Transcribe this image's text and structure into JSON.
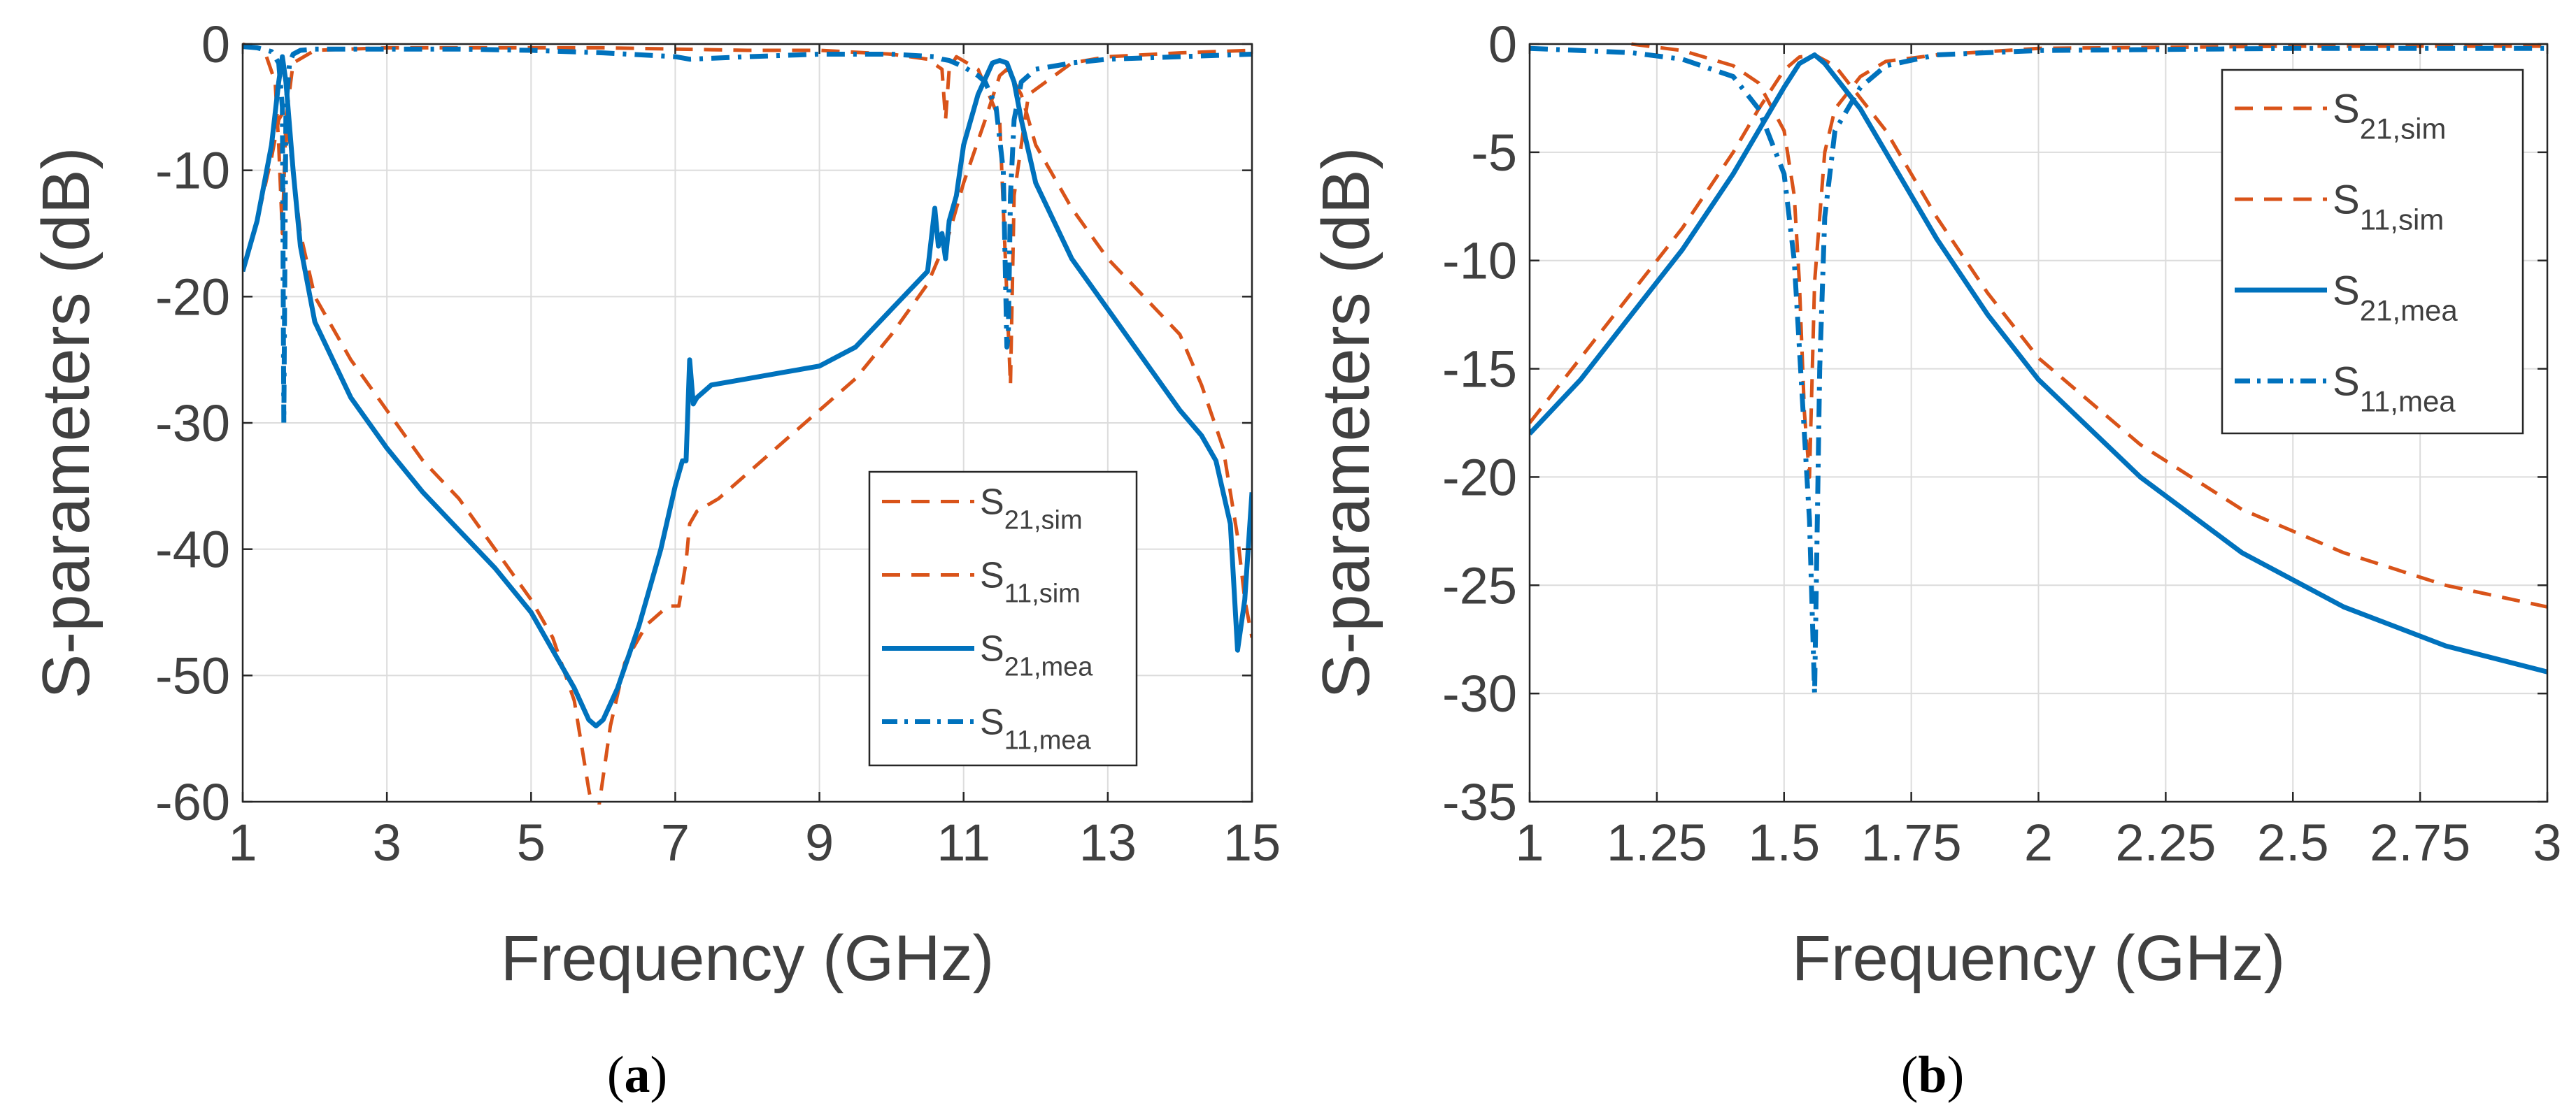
{
  "colors": {
    "sim": "#D95319",
    "mea": "#0072BD",
    "axis": "#262626",
    "grid": "#dcdcdc",
    "text": "#404040"
  },
  "chart_data": [
    {
      "id": "a",
      "type": "line",
      "caption": {
        "open": "(",
        "letter": "a",
        "close": ")"
      },
      "xlabel": "Frequency (GHz)",
      "ylabel": "S-parameters (dB)",
      "xlim": [
        1,
        15
      ],
      "ylim": [
        -60,
        0
      ],
      "xticks": [
        1,
        3,
        5,
        7,
        9,
        11,
        13,
        15
      ],
      "xtick_labels": [
        "1",
        "3",
        "5",
        "7",
        "9",
        "11",
        "13",
        "15"
      ],
      "yticks": [
        -60,
        -50,
        -40,
        -30,
        -20,
        -10,
        0
      ],
      "ytick_labels": [
        "-60",
        "-50",
        "-40",
        "-30",
        "-20",
        "-10",
        "0"
      ],
      "grid": true,
      "legend_location": "bottom-right",
      "series": [
        {
          "name": "S21,sim",
          "label_main": "S",
          "label_sub": "21,sim",
          "style": "dashed",
          "color_key": "sim",
          "x": [
            1.0,
            1.2,
            1.4,
            1.5,
            1.55,
            1.6,
            1.7,
            1.8,
            2.0,
            2.5,
            3.0,
            3.5,
            4.0,
            4.5,
            5.0,
            5.3,
            5.6,
            5.8,
            5.9,
            6.0,
            6.1,
            6.3,
            6.6,
            6.9,
            7.05,
            7.15,
            7.2,
            7.3,
            7.6,
            8.0,
            8.5,
            9.0,
            9.5,
            10.0,
            10.5,
            10.8,
            11.0,
            11.3,
            11.5,
            11.6,
            11.8,
            12.0,
            12.5,
            13.0,
            13.5,
            14.0,
            14.3,
            14.6,
            14.8,
            14.9,
            15.0
          ],
          "y": [
            -18,
            -14,
            -9,
            -6,
            -5.5,
            -6,
            -10,
            -15,
            -20,
            -25,
            -29,
            -33,
            -36,
            -40,
            -44,
            -47,
            -52,
            -59,
            -62,
            -58,
            -54,
            -49,
            -46,
            -44.5,
            -44.5,
            -41,
            -38,
            -37,
            -36,
            -34,
            -31.5,
            -29,
            -26.5,
            -23,
            -19,
            -15,
            -11,
            -6,
            -2.5,
            -2,
            -4,
            -8,
            -13,
            -17,
            -20,
            -23,
            -27,
            -32,
            -39,
            -44,
            -47
          ]
        },
        {
          "name": "S11,sim",
          "label_main": "S",
          "label_sub": "11,sim",
          "style": "dashed",
          "color_key": "sim",
          "x": [
            1.0,
            1.3,
            1.45,
            1.5,
            1.55,
            1.6,
            1.7,
            2.0,
            3.0,
            4.0,
            5.0,
            6.0,
            7.0,
            8.0,
            9.0,
            10.0,
            10.5,
            10.7,
            10.75,
            10.8,
            10.9,
            11.2,
            11.5,
            11.6,
            11.65,
            11.7,
            11.9,
            12.5,
            13.0,
            14.0,
            15.0
          ],
          "y": [
            0,
            -0.5,
            -3,
            -8,
            -15,
            -6,
            -1.5,
            -0.5,
            -0.3,
            -0.3,
            -0.3,
            -0.3,
            -0.4,
            -0.5,
            -0.5,
            -0.8,
            -1.2,
            -2,
            -6,
            -2,
            -1,
            -2,
            -6,
            -20,
            -27,
            -12,
            -4,
            -1.5,
            -1,
            -0.7,
            -0.5
          ]
        },
        {
          "name": "S21,mea",
          "label_main": "S",
          "label_sub": "21,mea",
          "style": "solid",
          "color_key": "mea",
          "x": [
            1.0,
            1.2,
            1.4,
            1.5,
            1.55,
            1.6,
            1.7,
            1.8,
            2.0,
            2.5,
            3.0,
            3.5,
            4.0,
            4.5,
            5.0,
            5.3,
            5.6,
            5.8,
            5.9,
            6.0,
            6.2,
            6.5,
            6.8,
            7.0,
            7.1,
            7.15,
            7.2,
            7.25,
            7.3,
            7.5,
            8.0,
            8.5,
            9.0,
            9.5,
            10.0,
            10.5,
            10.6,
            10.65,
            10.7,
            10.75,
            10.8,
            10.9,
            11.0,
            11.2,
            11.4,
            11.5,
            11.6,
            11.7,
            11.8,
            12.0,
            12.5,
            13.0,
            13.5,
            14.0,
            14.3,
            14.5,
            14.7,
            14.8,
            14.9,
            15.0
          ],
          "y": [
            -18,
            -14,
            -8,
            -3,
            -1,
            -3,
            -10,
            -16,
            -22,
            -28,
            -32,
            -35.5,
            -38.5,
            -41.5,
            -45,
            -48,
            -51,
            -53.5,
            -54,
            -53.5,
            -51,
            -46,
            -40,
            -35,
            -33,
            -33,
            -25,
            -28.5,
            -28,
            -27,
            -26.5,
            -26,
            -25.5,
            -24,
            -21,
            -18,
            -13,
            -16,
            -15,
            -17,
            -14,
            -12,
            -8,
            -4,
            -1.5,
            -1.3,
            -1.5,
            -3,
            -6,
            -11,
            -17,
            -21,
            -25,
            -29,
            -31,
            -33,
            -38,
            -48,
            -44,
            -35.5
          ]
        },
        {
          "name": "S11,mea",
          "label_main": "S",
          "label_sub": "11,mea",
          "style": "dashdot",
          "color_key": "mea",
          "x": [
            1.0,
            1.2,
            1.4,
            1.5,
            1.55,
            1.57,
            1.6,
            1.65,
            1.7,
            1.8,
            2.0,
            3.0,
            4.0,
            5.0,
            6.0,
            7.0,
            7.2,
            8.0,
            9.0,
            10.0,
            10.6,
            10.7,
            10.8,
            11.0,
            11.2,
            11.3,
            11.45,
            11.55,
            11.6,
            11.62,
            11.65,
            11.7,
            11.8,
            12.0,
            12.5,
            13.0,
            14.0,
            15.0
          ],
          "y": [
            -0.2,
            -0.3,
            -0.6,
            -1.5,
            -5,
            -30,
            -5,
            -1.5,
            -0.8,
            -0.5,
            -0.4,
            -0.4,
            -0.4,
            -0.5,
            -0.7,
            -1,
            -1.2,
            -1,
            -0.8,
            -0.8,
            -1,
            -1.2,
            -1.3,
            -1.8,
            -2.5,
            -3,
            -5,
            -10,
            -24,
            -23,
            -12,
            -6,
            -3,
            -2,
            -1.5,
            -1.2,
            -1,
            -0.8
          ]
        }
      ]
    },
    {
      "id": "b",
      "type": "line",
      "caption": {
        "open": "(",
        "letter": "b",
        "close": ")"
      },
      "xlabel": "Frequency (GHz)",
      "ylabel": "S-parameters (dB)",
      "xlim": [
        1,
        3
      ],
      "ylim": [
        -35,
        0
      ],
      "xticks": [
        1,
        1.25,
        1.5,
        1.75,
        2,
        2.25,
        2.5,
        2.75,
        3
      ],
      "xtick_labels": [
        "1",
        "1.25",
        "1.5",
        "1.75",
        "2",
        "2.25",
        "2.5",
        "2.75",
        "3"
      ],
      "yticks": [
        -35,
        -30,
        -25,
        -20,
        -15,
        -10,
        -5,
        0
      ],
      "ytick_labels": [
        "-35",
        "-30",
        "-25",
        "-20",
        "-15",
        "-10",
        "-5",
        "0"
      ],
      "grid": true,
      "legend_location": "top-right",
      "series": [
        {
          "name": "S21,sim",
          "label_main": "S",
          "label_sub": "21,sim",
          "style": "dashed",
          "color_key": "sim",
          "x": [
            1.0,
            1.1,
            1.2,
            1.3,
            1.4,
            1.45,
            1.5,
            1.53,
            1.56,
            1.6,
            1.65,
            1.7,
            1.8,
            1.9,
            2.0,
            2.2,
            2.4,
            2.6,
            2.8,
            3.0
          ],
          "y": [
            -17.5,
            -14.5,
            -11.5,
            -8.5,
            -5,
            -3,
            -1.2,
            -0.6,
            -0.5,
            -1,
            -2.5,
            -4,
            -8,
            -11.5,
            -14.5,
            -18.5,
            -21.5,
            -23.5,
            -25,
            -26
          ]
        },
        {
          "name": "S11,sim",
          "label_main": "S",
          "label_sub": "11,sim",
          "style": "dashed",
          "color_key": "sim",
          "x": [
            1.2,
            1.3,
            1.4,
            1.45,
            1.5,
            1.52,
            1.53,
            1.54,
            1.55,
            1.56,
            1.58,
            1.6,
            1.65,
            1.7,
            1.8,
            2.0,
            2.5,
            3.0
          ],
          "y": [
            0,
            -0.3,
            -1,
            -1.8,
            -4,
            -7,
            -11,
            -17,
            -20,
            -11,
            -5,
            -3,
            -1.5,
            -0.8,
            -0.5,
            -0.2,
            -0.1,
            -0.1
          ]
        },
        {
          "name": "S21,mea",
          "label_main": "S",
          "label_sub": "21,mea",
          "style": "solid",
          "color_key": "mea",
          "x": [
            1.0,
            1.1,
            1.2,
            1.3,
            1.4,
            1.45,
            1.5,
            1.53,
            1.56,
            1.58,
            1.6,
            1.65,
            1.7,
            1.8,
            1.9,
            2.0,
            2.2,
            2.4,
            2.6,
            2.8,
            3.0
          ],
          "y": [
            -18,
            -15.5,
            -12.5,
            -9.5,
            -6,
            -4,
            -2,
            -0.9,
            -0.5,
            -0.9,
            -1.5,
            -3,
            -5,
            -9,
            -12.5,
            -15.5,
            -20,
            -23.5,
            -26,
            -27.8,
            -29
          ]
        },
        {
          "name": "S11,mea",
          "label_main": "S",
          "label_sub": "11,mea",
          "style": "dashdot",
          "color_key": "mea",
          "x": [
            1.0,
            1.2,
            1.3,
            1.4,
            1.45,
            1.5,
            1.52,
            1.54,
            1.55,
            1.56,
            1.57,
            1.58,
            1.6,
            1.65,
            1.7,
            1.8,
            2.0,
            2.5,
            3.0
          ],
          "y": [
            -0.2,
            -0.4,
            -0.7,
            -1.5,
            -3,
            -6,
            -10,
            -18,
            -22,
            -30,
            -15,
            -8,
            -4,
            -2,
            -1,
            -0.5,
            -0.3,
            -0.2,
            -0.2
          ]
        }
      ]
    }
  ]
}
